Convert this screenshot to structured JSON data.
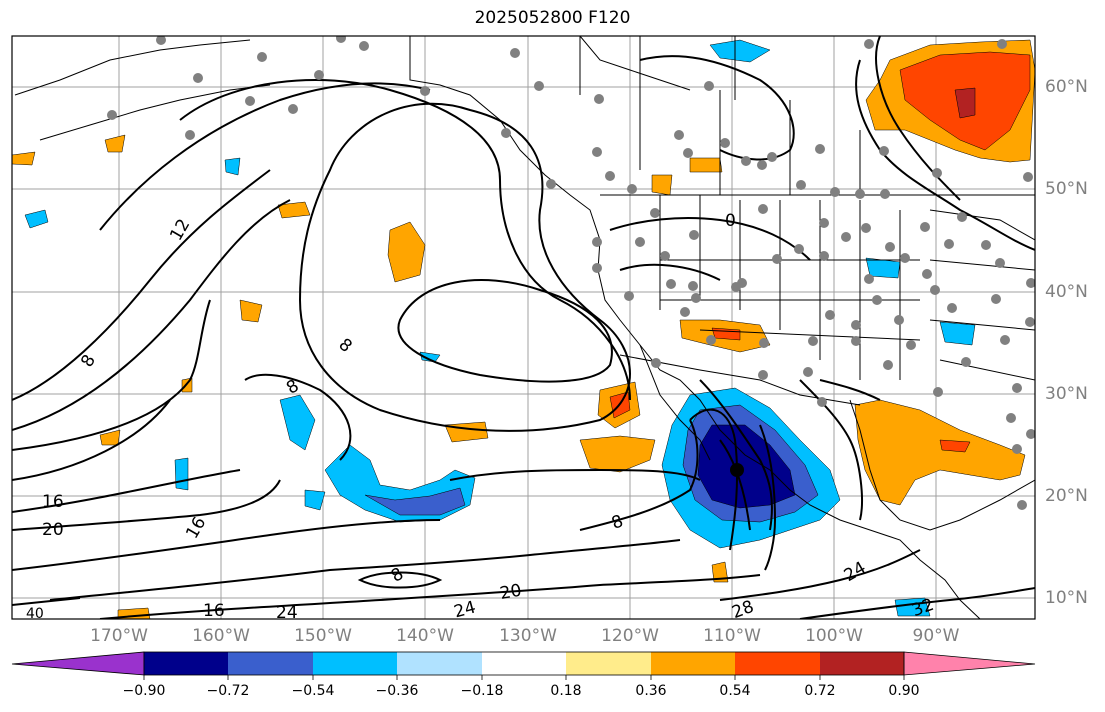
{
  "title": "2025052800 F120",
  "lat_labels": [
    "60°N",
    "50°N",
    "40°N",
    "30°N",
    "20°N",
    "10°N"
  ],
  "lon_labels": [
    "170°W",
    "160°W",
    "150°W",
    "140°W",
    "130°W",
    "120°W",
    "110°W",
    "100°W",
    "90°W"
  ],
  "contour_labels": [
    "12",
    "8",
    "8",
    "8",
    "16",
    "20",
    "16",
    "8",
    "16",
    "24",
    "8",
    "24",
    "20",
    "28",
    "24",
    "32",
    "0",
    "40"
  ],
  "colorbar": {
    "ticks": [
      "−0.90",
      "−0.72",
      "−0.54",
      "−0.36",
      "−0.18",
      "0.18",
      "0.36",
      "0.54",
      "0.72",
      "0.90"
    ],
    "colors": [
      "#9a32cd",
      "#00008b",
      "#3a5fcd",
      "#00bfff",
      "#b0e2ff",
      "#ffffff",
      "#ffec8b",
      "#ffa500",
      "#ff4500",
      "#b22222",
      "#ff82ab"
    ]
  },
  "colors": {
    "contour": "#000000",
    "grid": "#a0a0a0",
    "station_dot": "#808080",
    "axis_label": "#808080"
  }
}
